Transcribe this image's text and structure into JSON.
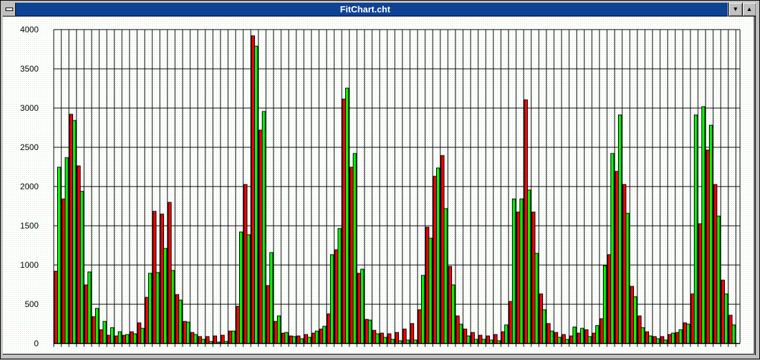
{
  "window": {
    "title": "FitChart.cht",
    "system_menu_icon": "system-menu-icon",
    "minimize_icon": "arrow-down-icon",
    "maximize_icon": "arrow-up-icon"
  },
  "colors": {
    "series_a": "#ff0000",
    "series_b": "#00ff00",
    "outline": "#000000",
    "titlebar": "#0a3a8c"
  },
  "chart_data": {
    "type": "bar",
    "grid": true,
    "ylim": [
      0,
      4000
    ],
    "yticks": [
      "0",
      "500",
      "1000",
      "1500",
      "2000",
      "2500",
      "3000",
      "3500",
      "4000"
    ],
    "series": [
      {
        "color": "#ff0000",
        "values": [
          921,
          1842,
          2921,
          2263,
          746,
          342,
          175,
          105,
          96,
          105,
          149,
          263,
          588,
          1684,
          1649,
          1798,
          623,
          281,
          140,
          88,
          88,
          96,
          105,
          158,
          474,
          2026,
          3921,
          2719,
          737,
          281,
          132,
          96,
          96,
          114,
          132,
          184,
          377,
          1193,
          3114,
          2246,
          895,
          307,
          167,
          132,
          123,
          140,
          184,
          254,
          430,
          1482,
          2131,
          2395,
          982,
          351,
          184,
          140,
          105,
          96,
          114,
          149,
          535,
          1675,
          3105,
          1675,
          632,
          254,
          140,
          114,
          96,
          132,
          175,
          132,
          316,
          1132,
          2193,
          2026,
          728,
          351,
          149,
          88,
          88,
          114,
          140,
          263,
          632,
          1526,
          2465,
          2026,
          807,
          360
        ]
      },
      {
        "color": "#00ff00",
        "values": [
          2246,
          2368,
          2842,
          1939,
          912,
          447,
          281,
          202,
          149,
          114,
          123,
          193,
          895,
          904,
          1211,
          930,
          553,
          272,
          114,
          53,
          26,
          18,
          26,
          158,
          1421,
          1386,
          3789,
          2956,
          1158,
          351,
          140,
          88,
          61,
          79,
          158,
          219,
          1132,
          1465,
          3254,
          2421,
          947,
          298,
          123,
          79,
          53,
          35,
          44,
          44,
          868,
          1342,
          2237,
          1719,
          746,
          246,
          96,
          53,
          53,
          44,
          35,
          237,
          1842,
          1842,
          1956,
          1149,
          430,
          158,
          79,
          53,
          210,
          193,
          88,
          228,
          991,
          2421,
          2912,
          1658,
          596,
          202,
          96,
          61,
          44,
          132,
          175,
          246,
          2912,
          3018,
          2781,
          1623,
          632,
          237
        ]
      }
    ]
  }
}
